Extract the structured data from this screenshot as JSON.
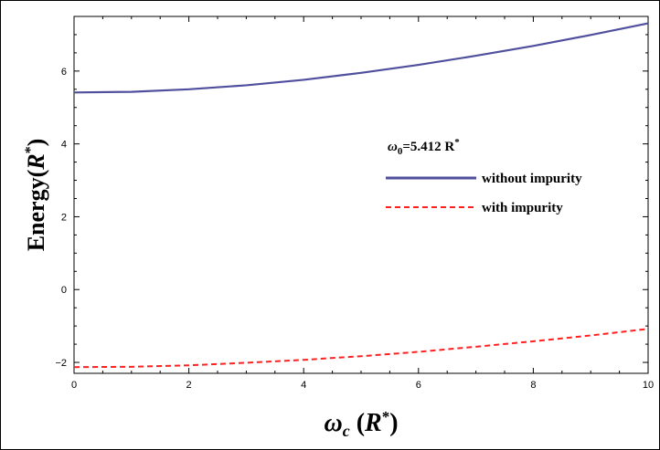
{
  "chart_data": {
    "type": "line",
    "xlabel": "ωc (R*)",
    "ylabel": "Energy(R*)",
    "xlim": [
      0,
      10
    ],
    "ylim": [
      -2.3,
      7.5
    ],
    "x_ticks": [
      0,
      2,
      4,
      6,
      8,
      10
    ],
    "y_ticks": [
      -2,
      0,
      2,
      4,
      6
    ],
    "legend_title": "ω0=5.412 R*",
    "legend_position": "right-middle",
    "grid": false,
    "series": [
      {
        "name": "without impurity",
        "style": "solid",
        "color": "#4f4f9e",
        "x": [
          0,
          1,
          2,
          3,
          4,
          5,
          6,
          7,
          8,
          9,
          10
        ],
        "y": [
          5.412,
          5.43,
          5.5,
          5.61,
          5.76,
          5.95,
          6.17,
          6.42,
          6.69,
          6.99,
          7.31
        ]
      },
      {
        "name": "with impurity",
        "style": "dashed",
        "color": "#ff2020",
        "x": [
          0,
          1,
          2,
          3,
          4,
          5,
          6,
          7,
          8,
          9,
          10
        ],
        "y": [
          -2.13,
          -2.12,
          -2.08,
          -2.01,
          -1.93,
          -1.83,
          -1.71,
          -1.57,
          -1.42,
          -1.26,
          -1.08
        ]
      }
    ]
  }
}
